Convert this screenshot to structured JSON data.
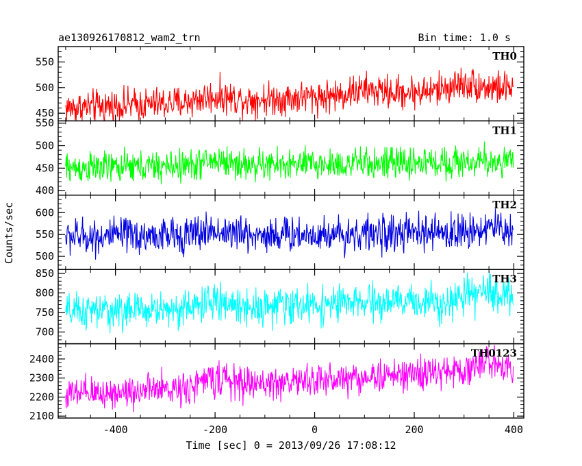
{
  "header": {
    "title": "ae130926170812_wam2_trn",
    "bin_time": "Bin time: 1.0 s"
  },
  "chart_data": {
    "type": "line",
    "xlabel": "Time [sec] 0 = 2013/09/26 17:08:12",
    "ylabel": "Counts/sec",
    "xlim": [
      -515,
      420
    ],
    "xticks": [
      -400,
      -200,
      0,
      200,
      400
    ],
    "x_start": -500,
    "x_end": 399,
    "x_step": 1,
    "panels": [
      {
        "name": "TH0",
        "color": "#ff0000",
        "ylim": [
          435,
          580
        ],
        "yticks": [
          450,
          500,
          550
        ],
        "trend": {
          "start": 460,
          "end": 500
        },
        "noise_amplitude": 26,
        "bumps": [
          {
            "x": -200,
            "y": 10
          },
          {
            "x": 100,
            "y": 8
          },
          {
            "x": 300,
            "y": 12
          }
        ]
      },
      {
        "name": "TH1",
        "color": "#00ff00",
        "ylim": [
          390,
          555
        ],
        "yticks": [
          400,
          450,
          500,
          550
        ],
        "trend": {
          "start": 450,
          "end": 465
        },
        "noise_amplitude": 28,
        "bumps": [
          {
            "x": -200,
            "y": 12
          }
        ]
      },
      {
        "name": "TH2",
        "color": "#0000e0",
        "ylim": [
          470,
          640
        ],
        "yticks": [
          500,
          550,
          600
        ],
        "trend": {
          "start": 545,
          "end": 555
        },
        "noise_amplitude": 33,
        "bumps": [
          {
            "x": -200,
            "y": 10
          },
          {
            "x": 350,
            "y": 12
          }
        ]
      },
      {
        "name": "TH3",
        "color": "#00ffff",
        "ylim": [
          670,
          860
        ],
        "yticks": [
          700,
          750,
          800,
          850
        ],
        "trend": {
          "start": 750,
          "end": 785
        },
        "noise_amplitude": 37,
        "bumps": [
          {
            "x": -200,
            "y": 15
          },
          {
            "x": 350,
            "y": 20
          }
        ]
      },
      {
        "name": "TH0123",
        "color": "#ff00ff",
        "ylim": [
          2090,
          2480
        ],
        "yticks": [
          2100,
          2200,
          2300,
          2400
        ],
        "trend": {
          "start": 2210,
          "end": 2350
        },
        "noise_amplitude": 70,
        "bumps": [
          {
            "x": -200,
            "y": 40
          },
          {
            "x": 350,
            "y": 40
          }
        ]
      }
    ]
  }
}
